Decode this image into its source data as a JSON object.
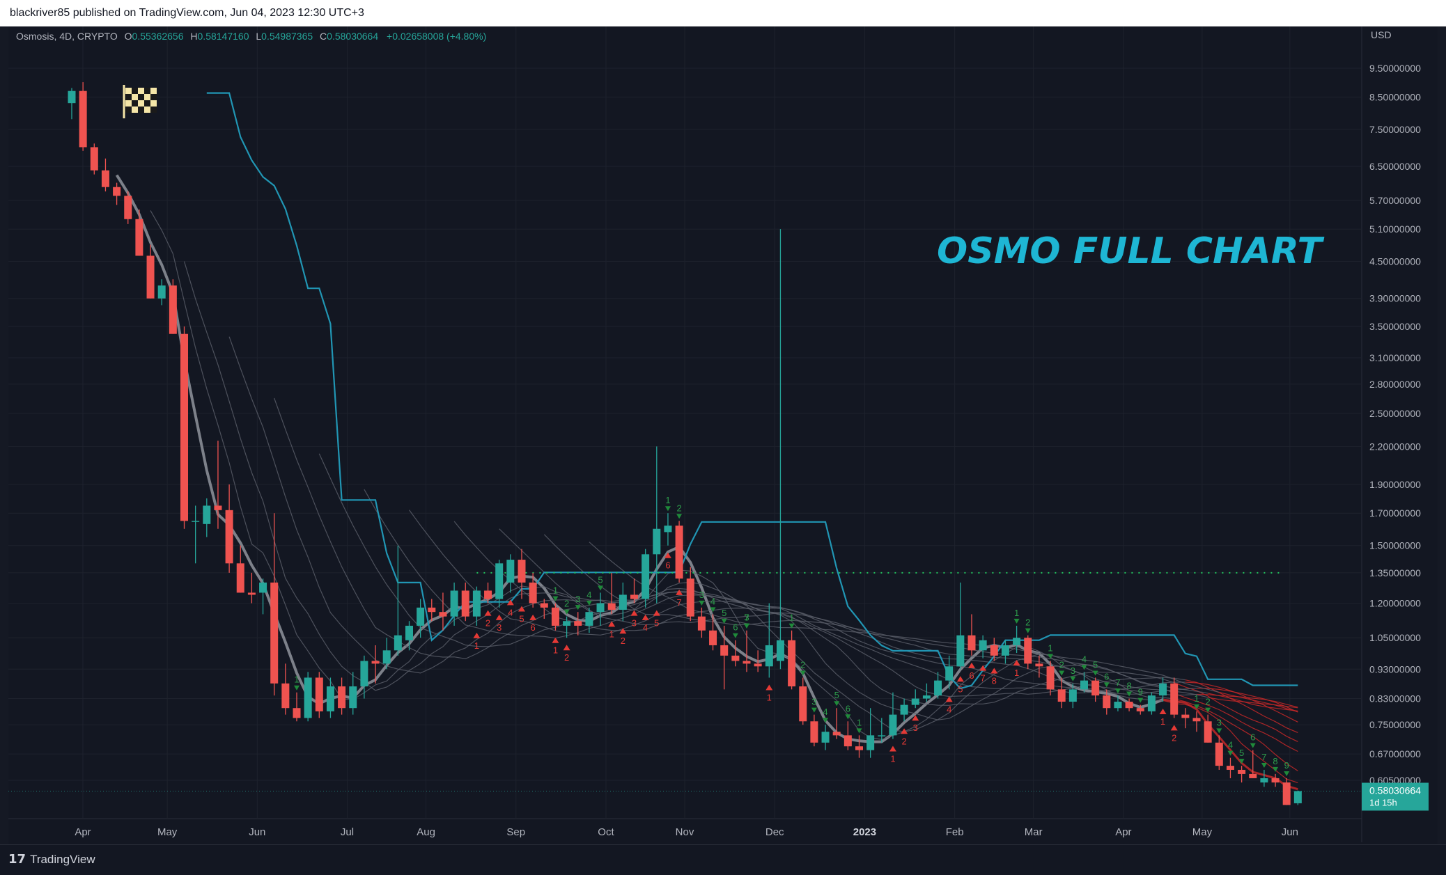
{
  "header": {
    "published_text": "blackriver85 published on TradingView.com, Jun 04, 2023 12:30 UTC+3"
  },
  "legend": {
    "symbol": "Osmosis, 4D, CRYPTO",
    "o_label": "O",
    "o": "0.55362656",
    "h_label": "H",
    "h": "0.58147160",
    "l_label": "L",
    "l": "0.54987365",
    "c_label": "C",
    "c": "0.58030664",
    "change": "+0.02658008 (+4.80%)"
  },
  "currency": "USD",
  "price_label": {
    "value": "0.58030664",
    "countdown": "1d 15h"
  },
  "footer": {
    "brand": "TradingView"
  },
  "annotation": {
    "text": "OSMO FULL CHART"
  },
  "colors": {
    "up": "#26a69a",
    "down": "#ef5350",
    "ma": "#787b86",
    "cloud": "#2196b4",
    "annotation": "#1eb6d4"
  },
  "chart_data": {
    "type": "candlestick",
    "scale": "log",
    "y_ticks": [
      "9.50000000",
      "8.50000000",
      "7.50000000",
      "6.50000000",
      "5.70000000",
      "5.10000000",
      "4.50000000",
      "3.90000000",
      "3.50000000",
      "3.10000000",
      "2.80000000",
      "2.50000000",
      "2.20000000",
      "1.90000000",
      "1.70000000",
      "1.50000000",
      "1.35000000",
      "1.20000000",
      "1.05000000",
      "0.93000000",
      "0.83000000",
      "0.75000000",
      "0.67000000",
      "0.60500000"
    ],
    "x_ticks": [
      "Apr",
      "May",
      "Jun",
      "Jul",
      "Aug",
      "Sep",
      "Oct",
      "Nov",
      "Dec",
      "2023",
      "Feb",
      "Mar",
      "Apr",
      "May",
      "Jun"
    ],
    "x_tick_bold": "2023",
    "candles": [
      {
        "o": 8.3,
        "h": 8.8,
        "l": 7.8,
        "c": 8.7
      },
      {
        "o": 8.7,
        "h": 9.0,
        "l": 6.9,
        "c": 7.0
      },
      {
        "o": 7.0,
        "h": 7.1,
        "l": 6.3,
        "c": 6.4
      },
      {
        "o": 6.4,
        "h": 6.7,
        "l": 5.9,
        "c": 6.0
      },
      {
        "o": 6.0,
        "h": 6.1,
        "l": 5.6,
        "c": 5.8
      },
      {
        "o": 5.8,
        "h": 5.9,
        "l": 5.2,
        "c": 5.3
      },
      {
        "o": 5.3,
        "h": 5.5,
        "l": 4.6,
        "c": 4.6
      },
      {
        "o": 4.6,
        "h": 4.8,
        "l": 3.9,
        "c": 3.9
      },
      {
        "o": 3.9,
        "h": 4.2,
        "l": 3.8,
        "c": 4.1
      },
      {
        "o": 4.1,
        "h": 4.2,
        "l": 3.4,
        "c": 3.4
      },
      {
        "o": 3.4,
        "h": 3.5,
        "l": 1.6,
        "c": 1.65
      },
      {
        "o": 1.65,
        "h": 1.75,
        "l": 1.4,
        "c": 1.65
      },
      {
        "o": 1.63,
        "h": 1.8,
        "l": 1.55,
        "c": 1.75
      },
      {
        "o": 1.75,
        "h": 2.25,
        "l": 1.6,
        "c": 1.72
      },
      {
        "o": 1.72,
        "h": 1.9,
        "l": 1.35,
        "c": 1.4
      },
      {
        "o": 1.4,
        "h": 1.5,
        "l": 1.25,
        "c": 1.25
      },
      {
        "o": 1.25,
        "h": 1.35,
        "l": 1.2,
        "c": 1.24
      },
      {
        "o": 1.25,
        "h": 1.32,
        "l": 1.15,
        "c": 1.3
      },
      {
        "o": 1.3,
        "h": 1.7,
        "l": 0.84,
        "c": 0.88
      },
      {
        "o": 0.88,
        "h": 0.95,
        "l": 0.78,
        "c": 0.8
      },
      {
        "o": 0.8,
        "h": 0.85,
        "l": 0.76,
        "c": 0.77
      },
      {
        "o": 0.77,
        "h": 0.92,
        "l": 0.76,
        "c": 0.9
      },
      {
        "o": 0.9,
        "h": 0.92,
        "l": 0.77,
        "c": 0.79
      },
      {
        "o": 0.79,
        "h": 0.9,
        "l": 0.77,
        "c": 0.87
      },
      {
        "o": 0.87,
        "h": 0.9,
        "l": 0.78,
        "c": 0.8
      },
      {
        "o": 0.8,
        "h": 0.92,
        "l": 0.78,
        "c": 0.87
      },
      {
        "o": 0.87,
        "h": 0.98,
        "l": 0.83,
        "c": 0.96
      },
      {
        "o": 0.96,
        "h": 1.02,
        "l": 0.88,
        "c": 0.95
      },
      {
        "o": 0.95,
        "h": 1.05,
        "l": 0.93,
        "c": 1.0
      },
      {
        "o": 1.0,
        "h": 1.5,
        "l": 0.98,
        "c": 1.06
      },
      {
        "o": 1.04,
        "h": 1.12,
        "l": 1.0,
        "c": 1.1
      },
      {
        "o": 1.1,
        "h": 1.22,
        "l": 1.05,
        "c": 1.18
      },
      {
        "o": 1.18,
        "h": 1.22,
        "l": 1.12,
        "c": 1.16
      },
      {
        "o": 1.16,
        "h": 1.25,
        "l": 1.08,
        "c": 1.14
      },
      {
        "o": 1.14,
        "h": 1.3,
        "l": 1.1,
        "c": 1.26
      },
      {
        "o": 1.26,
        "h": 1.3,
        "l": 1.12,
        "c": 1.14
      },
      {
        "o": 1.14,
        "h": 1.28,
        "l": 1.1,
        "c": 1.26
      },
      {
        "o": 1.26,
        "h": 1.3,
        "l": 1.2,
        "c": 1.22
      },
      {
        "o": 1.22,
        "h": 1.42,
        "l": 1.18,
        "c": 1.4
      },
      {
        "o": 1.3,
        "h": 1.45,
        "l": 1.25,
        "c": 1.42
      },
      {
        "o": 1.42,
        "h": 1.48,
        "l": 1.22,
        "c": 1.3
      },
      {
        "o": 1.3,
        "h": 1.35,
        "l": 1.18,
        "c": 1.2
      },
      {
        "o": 1.2,
        "h": 1.22,
        "l": 1.13,
        "c": 1.18
      },
      {
        "o": 1.18,
        "h": 1.2,
        "l": 1.08,
        "c": 1.1
      },
      {
        "o": 1.1,
        "h": 1.14,
        "l": 1.05,
        "c": 1.12
      },
      {
        "o": 1.12,
        "h": 1.16,
        "l": 1.06,
        "c": 1.1
      },
      {
        "o": 1.1,
        "h": 1.18,
        "l": 1.07,
        "c": 1.16
      },
      {
        "o": 1.16,
        "h": 1.25,
        "l": 1.1,
        "c": 1.2
      },
      {
        "o": 1.2,
        "h": 1.35,
        "l": 1.15,
        "c": 1.17
      },
      {
        "o": 1.17,
        "h": 1.3,
        "l": 1.12,
        "c": 1.24
      },
      {
        "o": 1.24,
        "h": 1.32,
        "l": 1.2,
        "c": 1.22
      },
      {
        "o": 1.22,
        "h": 1.48,
        "l": 1.18,
        "c": 1.45
      },
      {
        "o": 1.45,
        "h": 2.2,
        "l": 1.2,
        "c": 1.6
      },
      {
        "o": 1.58,
        "h": 1.7,
        "l": 1.5,
        "c": 1.62
      },
      {
        "o": 1.62,
        "h": 1.65,
        "l": 1.3,
        "c": 1.32
      },
      {
        "o": 1.32,
        "h": 1.38,
        "l": 1.12,
        "c": 1.14
      },
      {
        "o": 1.14,
        "h": 1.18,
        "l": 1.05,
        "c": 1.08
      },
      {
        "o": 1.08,
        "h": 1.15,
        "l": 1.0,
        "c": 1.02
      },
      {
        "o": 1.02,
        "h": 1.1,
        "l": 0.86,
        "c": 0.98
      },
      {
        "o": 0.98,
        "h": 1.04,
        "l": 0.94,
        "c": 0.96
      },
      {
        "o": 0.96,
        "h": 1.08,
        "l": 0.92,
        "c": 0.95
      },
      {
        "o": 0.95,
        "h": 1.0,
        "l": 0.92,
        "c": 0.94
      },
      {
        "o": 0.94,
        "h": 1.2,
        "l": 0.9,
        "c": 1.02
      },
      {
        "o": 0.96,
        "h": 5.1,
        "l": 0.93,
        "c": 1.04
      },
      {
        "o": 1.04,
        "h": 1.08,
        "l": 0.86,
        "c": 0.87
      },
      {
        "o": 0.87,
        "h": 0.9,
        "l": 0.75,
        "c": 0.76
      },
      {
        "o": 0.76,
        "h": 0.78,
        "l": 0.69,
        "c": 0.7
      },
      {
        "o": 0.7,
        "h": 0.75,
        "l": 0.68,
        "c": 0.73
      },
      {
        "o": 0.73,
        "h": 0.8,
        "l": 0.71,
        "c": 0.72
      },
      {
        "o": 0.72,
        "h": 0.76,
        "l": 0.68,
        "c": 0.69
      },
      {
        "o": 0.69,
        "h": 0.72,
        "l": 0.66,
        "c": 0.68
      },
      {
        "o": 0.68,
        "h": 0.8,
        "l": 0.66,
        "c": 0.72
      },
      {
        "o": 0.72,
        "h": 0.77,
        "l": 0.7,
        "c": 0.72
      },
      {
        "o": 0.72,
        "h": 0.85,
        "l": 0.71,
        "c": 0.78
      },
      {
        "o": 0.78,
        "h": 0.83,
        "l": 0.76,
        "c": 0.81
      },
      {
        "o": 0.81,
        "h": 0.86,
        "l": 0.8,
        "c": 0.83
      },
      {
        "o": 0.83,
        "h": 0.88,
        "l": 0.82,
        "c": 0.84
      },
      {
        "o": 0.84,
        "h": 0.92,
        "l": 0.83,
        "c": 0.89
      },
      {
        "o": 0.89,
        "h": 0.98,
        "l": 0.86,
        "c": 0.94
      },
      {
        "o": 0.94,
        "h": 1.3,
        "l": 0.93,
        "c": 1.06
      },
      {
        "o": 1.06,
        "h": 1.15,
        "l": 0.98,
        "c": 1.0
      },
      {
        "o": 1.0,
        "h": 1.06,
        "l": 0.97,
        "c": 1.04
      },
      {
        "o": 1.02,
        "h": 1.05,
        "l": 0.96,
        "c": 0.98
      },
      {
        "o": 0.98,
        "h": 1.04,
        "l": 0.95,
        "c": 1.02
      },
      {
        "o": 1.02,
        "h": 1.1,
        "l": 0.99,
        "c": 1.05
      },
      {
        "o": 1.05,
        "h": 1.06,
        "l": 0.93,
        "c": 0.95
      },
      {
        "o": 0.95,
        "h": 0.98,
        "l": 0.9,
        "c": 0.94
      },
      {
        "o": 0.94,
        "h": 0.96,
        "l": 0.84,
        "c": 0.86
      },
      {
        "o": 0.86,
        "h": 0.9,
        "l": 0.8,
        "c": 0.82
      },
      {
        "o": 0.82,
        "h": 0.88,
        "l": 0.8,
        "c": 0.86
      },
      {
        "o": 0.86,
        "h": 0.92,
        "l": 0.85,
        "c": 0.89
      },
      {
        "o": 0.89,
        "h": 0.9,
        "l": 0.82,
        "c": 0.84
      },
      {
        "o": 0.84,
        "h": 0.86,
        "l": 0.78,
        "c": 0.8
      },
      {
        "o": 0.8,
        "h": 0.84,
        "l": 0.79,
        "c": 0.82
      },
      {
        "o": 0.82,
        "h": 0.83,
        "l": 0.79,
        "c": 0.8
      },
      {
        "o": 0.8,
        "h": 0.81,
        "l": 0.78,
        "c": 0.79
      },
      {
        "o": 0.79,
        "h": 0.85,
        "l": 0.78,
        "c": 0.84
      },
      {
        "o": 0.84,
        "h": 0.9,
        "l": 0.82,
        "c": 0.88
      },
      {
        "o": 0.88,
        "h": 0.9,
        "l": 0.77,
        "c": 0.78
      },
      {
        "o": 0.78,
        "h": 0.8,
        "l": 0.74,
        "c": 0.77
      },
      {
        "o": 0.77,
        "h": 0.79,
        "l": 0.73,
        "c": 0.76
      },
      {
        "o": 0.76,
        "h": 0.78,
        "l": 0.7,
        "c": 0.7
      },
      {
        "o": 0.7,
        "h": 0.72,
        "l": 0.63,
        "c": 0.64
      },
      {
        "o": 0.64,
        "h": 0.66,
        "l": 0.61,
        "c": 0.63
      },
      {
        "o": 0.63,
        "h": 0.64,
        "l": 0.6,
        "c": 0.62
      },
      {
        "o": 0.62,
        "h": 0.68,
        "l": 0.61,
        "c": 0.61
      },
      {
        "o": 0.6,
        "h": 0.63,
        "l": 0.59,
        "c": 0.61
      },
      {
        "o": 0.61,
        "h": 0.62,
        "l": 0.59,
        "c": 0.6
      },
      {
        "o": 0.6,
        "h": 0.61,
        "l": 0.55,
        "c": 0.55
      },
      {
        "o": 0.5536,
        "h": 0.5815,
        "l": 0.5499,
        "c": 0.5803
      }
    ],
    "counts_up": [
      {
        "i": 43,
        "n": "1"
      },
      {
        "i": 44,
        "n": "2"
      },
      {
        "i": 45,
        "n": "3"
      },
      {
        "i": 46,
        "n": "4"
      },
      {
        "i": 47,
        "n": "5"
      },
      {
        "i": 53,
        "n": "1"
      },
      {
        "i": 54,
        "n": "2"
      },
      {
        "i": 56,
        "n": "3"
      },
      {
        "i": 57,
        "n": "4"
      },
      {
        "i": 58,
        "n": "5"
      },
      {
        "i": 59,
        "n": "6"
      },
      {
        "i": 60,
        "n": "7"
      },
      {
        "i": 64,
        "n": "1"
      },
      {
        "i": 65,
        "n": "2"
      },
      {
        "i": 66,
        "n": "3"
      },
      {
        "i": 67,
        "n": "4"
      },
      {
        "i": 68,
        "n": "5"
      },
      {
        "i": 69,
        "n": "6"
      },
      {
        "i": 70,
        "n": "1"
      },
      {
        "i": 84,
        "n": "1"
      },
      {
        "i": 85,
        "n": "2"
      },
      {
        "i": 87,
        "n": "1"
      },
      {
        "i": 88,
        "n": "2"
      },
      {
        "i": 89,
        "n": "3"
      },
      {
        "i": 90,
        "n": "4"
      },
      {
        "i": 91,
        "n": "5"
      },
      {
        "i": 92,
        "n": "6"
      },
      {
        "i": 93,
        "n": "7"
      },
      {
        "i": 94,
        "n": "8"
      },
      {
        "i": 95,
        "n": "9"
      },
      {
        "i": 100,
        "n": "1"
      },
      {
        "i": 101,
        "n": "2"
      },
      {
        "i": 102,
        "n": "3"
      },
      {
        "i": 103,
        "n": "4"
      },
      {
        "i": 104,
        "n": "5"
      },
      {
        "i": 105,
        "n": "6"
      },
      {
        "i": 106,
        "n": "7"
      },
      {
        "i": 107,
        "n": "8"
      },
      {
        "i": 108,
        "n": "9"
      },
      {
        "i": 20,
        "n": "1"
      },
      {
        "i": 60,
        "n": "3"
      }
    ],
    "counts_down": [
      {
        "i": 36,
        "n": "1"
      },
      {
        "i": 37,
        "n": "2"
      },
      {
        "i": 38,
        "n": "3"
      },
      {
        "i": 39,
        "n": "4"
      },
      {
        "i": 40,
        "n": "5"
      },
      {
        "i": 41,
        "n": "6"
      },
      {
        "i": 43,
        "n": "1"
      },
      {
        "i": 44,
        "n": "2"
      },
      {
        "i": 48,
        "n": "1"
      },
      {
        "i": 49,
        "n": "2"
      },
      {
        "i": 50,
        "n": "3"
      },
      {
        "i": 51,
        "n": "4"
      },
      {
        "i": 52,
        "n": "5"
      },
      {
        "i": 53,
        "n": "6"
      },
      {
        "i": 54,
        "n": "7"
      },
      {
        "i": 62,
        "n": "1"
      },
      {
        "i": 73,
        "n": "1"
      },
      {
        "i": 74,
        "n": "2"
      },
      {
        "i": 75,
        "n": "3"
      },
      {
        "i": 78,
        "n": "4"
      },
      {
        "i": 79,
        "n": "5"
      },
      {
        "i": 80,
        "n": "6"
      },
      {
        "i": 81,
        "n": "7"
      },
      {
        "i": 82,
        "n": "8"
      },
      {
        "i": 84,
        "n": "1"
      },
      {
        "i": 97,
        "n": "1"
      },
      {
        "i": 98,
        "n": "2"
      }
    ],
    "resistance_level": 1.35,
    "title": "",
    "xlabel": "",
    "ylabel": ""
  }
}
